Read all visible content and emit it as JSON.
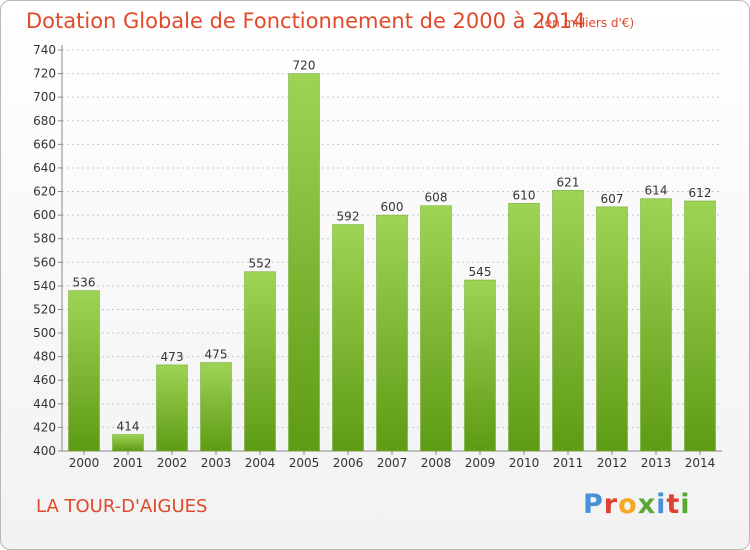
{
  "header": {
    "title": "Dotation Globale de Fonctionnement de 2000 à 2014",
    "unit": "(en milliers d'€)"
  },
  "footer": {
    "commune": "LA TOUR-D'AIGUES",
    "logo": "Proxiti"
  },
  "colors": {
    "title": "#e0492a",
    "bar_top": "#9ed456",
    "bar_bottom": "#5e9b14",
    "logo_letters": [
      "#4a90d9",
      "#e04030",
      "#f5a623",
      "#5aa832",
      "#4a90d9",
      "#e04030",
      "#5aa832"
    ]
  },
  "chart_data": {
    "type": "bar",
    "categories": [
      "2000",
      "2001",
      "2002",
      "2003",
      "2004",
      "2005",
      "2006",
      "2007",
      "2008",
      "2009",
      "2010",
      "2011",
      "2012",
      "2013",
      "2014"
    ],
    "values": [
      536,
      414,
      473,
      475,
      552,
      720,
      592,
      600,
      608,
      545,
      610,
      621,
      607,
      614,
      612
    ],
    "title": "Dotation Globale de Fonctionnement de 2000 à 2014",
    "ylim": [
      400,
      740
    ],
    "yticks": [
      400,
      420,
      440,
      460,
      480,
      500,
      520,
      540,
      560,
      580,
      600,
      620,
      640,
      660,
      680,
      700,
      720,
      740
    ],
    "grid": true
  }
}
